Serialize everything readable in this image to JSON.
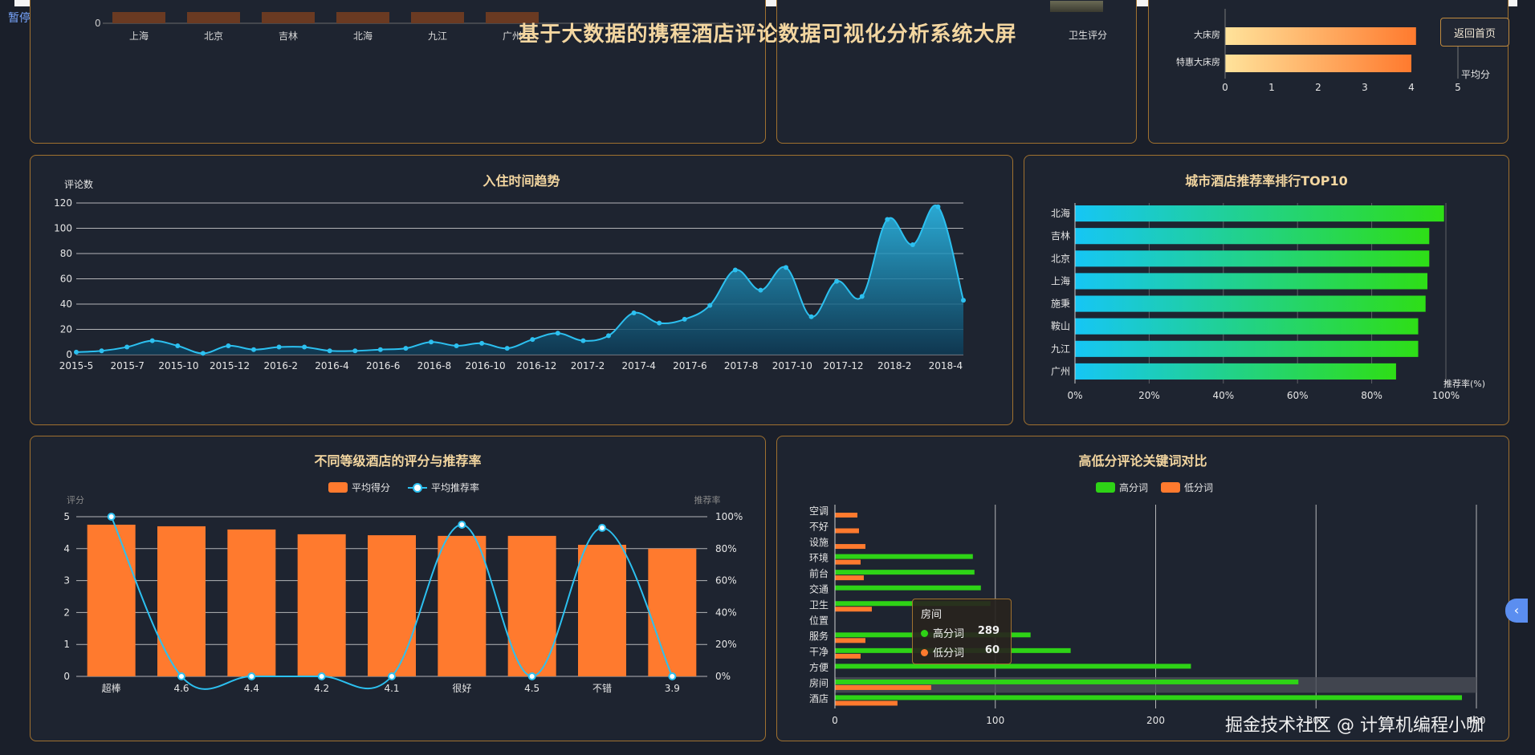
{
  "header": {
    "pause_label": "暂停",
    "title": "基于大数据的携程酒店评论数据可视化分析系统大屏",
    "home_button": "返回首页"
  },
  "top_left": {
    "zero_label": "0",
    "categories": [
      "上海",
      "北京",
      "吉林",
      "北海",
      "九江",
      "广州"
    ]
  },
  "top_mid": {
    "visible_label": "卫生评分"
  },
  "top_right": {
    "categories": [
      "大床房",
      "特惠大床房"
    ],
    "values": [
      4.1,
      4.0
    ],
    "ticks": [
      "0",
      "1",
      "2",
      "3",
      "4",
      "5"
    ],
    "axis_name": "平均分",
    "colors": {
      "start": "#ffe39b",
      "end": "#ff7a2e"
    }
  },
  "trend": {
    "title": "入住时间趋势"
  },
  "city": {
    "title": "城市酒店推荐率排行TOP10"
  },
  "grade": {
    "title": "不同等级酒店的评分与推荐率"
  },
  "keywords": {
    "title": "高低分评论关键词对比",
    "tooltip": {
      "title": "房间",
      "high_label": "高分词",
      "high_value": "289",
      "low_label": "低分词",
      "low_value": "60"
    }
  },
  "watermark": "掘金技术社区 @ 计算机编程小咖",
  "chart_data": [
    {
      "type": "area",
      "title": "入住时间趋势",
      "ylabel": "评论数",
      "ylim": [
        0,
        120
      ],
      "yticks": [
        0,
        20,
        40,
        60,
        80,
        100,
        120
      ],
      "x_tick_labels": [
        "2015-5",
        "2015-7",
        "2015-10",
        "2015-12",
        "2016-2",
        "2016-4",
        "2016-6",
        "2016-8",
        "2016-10",
        "2016-12",
        "2017-2",
        "2017-4",
        "2017-6",
        "2017-8",
        "2017-10",
        "2017-12",
        "2018-2",
        "2018-4"
      ],
      "values": [
        2,
        3,
        6,
        11,
        7,
        1,
        7,
        4,
        6,
        6,
        3,
        3,
        4,
        5,
        10,
        7,
        9,
        5,
        12,
        17,
        11,
        15,
        33,
        25,
        28,
        39,
        67,
        51,
        69,
        30,
        58,
        46,
        107,
        87,
        117,
        43
      ],
      "color": "#2cc0f0"
    },
    {
      "type": "bar",
      "title": "城市酒店推荐率排行TOP10",
      "xlabel": "推荐率(%)",
      "xlim": [
        0,
        100
      ],
      "x_tick_labels": [
        "0%",
        "20%",
        "40%",
        "60%",
        "80%",
        "100%"
      ],
      "categories": [
        "北海",
        "吉林",
        "北京",
        "上海",
        "施秉",
        "鞍山",
        "九江",
        "广州"
      ],
      "values": [
        100,
        96,
        96,
        95.5,
        95,
        93,
        93,
        87
      ],
      "colors": {
        "start": "#16c6f5",
        "end": "#2ede16"
      }
    },
    {
      "type": "bar",
      "title": "不同等级酒店的评分与推荐率",
      "ylabel": "评分",
      "y2label": "推荐率",
      "ylim": [
        0,
        5
      ],
      "y_tick_labels": [
        "0",
        "1",
        "2",
        "3",
        "4",
        "5"
      ],
      "y2_tick_labels": [
        "0%",
        "20%",
        "40%",
        "60%",
        "80%",
        "100%"
      ],
      "categories": [
        "超棒",
        "4.6",
        "4.4",
        "4.2",
        "4.1",
        "很好",
        "4.5",
        "不错",
        "3.9"
      ],
      "series": [
        {
          "name": "平均得分",
          "kind": "bar",
          "values": [
            4.75,
            4.7,
            4.6,
            4.45,
            4.42,
            4.4,
            4.4,
            4.12,
            4.0
          ],
          "color": "#ff7a2e"
        },
        {
          "name": "平均推荐率",
          "kind": "line",
          "values": [
            100,
            0,
            0,
            0,
            0,
            95,
            0,
            93,
            0
          ],
          "color": "#2cc0f0"
        }
      ]
    },
    {
      "type": "bar",
      "title": "高低分评论关键词对比",
      "xlim": [
        0,
        400
      ],
      "x_tick_labels": [
        "0",
        "100",
        "200",
        "300",
        "400"
      ],
      "categories": [
        "空调",
        "不好",
        "设施",
        "环境",
        "前台",
        "交通",
        "卫生",
        "位置",
        "服务",
        "干净",
        "方便",
        "房间",
        "酒店"
      ],
      "series": [
        {
          "name": "高分词",
          "values": [
            0,
            0,
            0,
            86,
            87,
            91,
            97,
            0,
            122,
            147,
            222,
            289,
            391
          ],
          "color": "#2ed316"
        },
        {
          "name": "低分词",
          "values": [
            14,
            15,
            19,
            16,
            18,
            0,
            23,
            0,
            19,
            16,
            0,
            60,
            39
          ],
          "color": "#ff7a2e"
        }
      ]
    }
  ]
}
